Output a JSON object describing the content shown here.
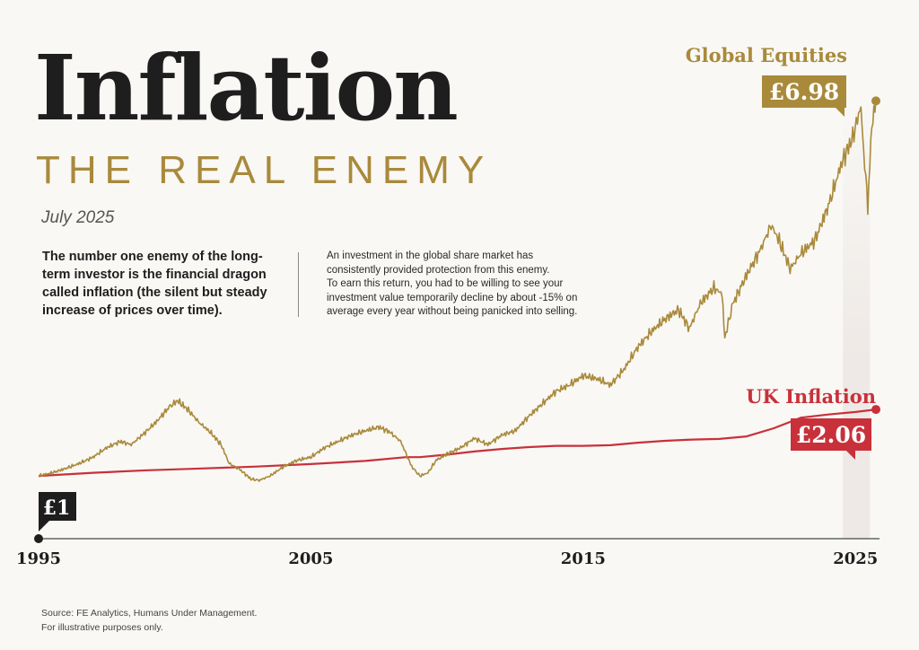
{
  "header": {
    "title": "Inflation",
    "subtitle": "THE REAL ENEMY",
    "date": "July 2025"
  },
  "intro": {
    "lead": "The number one enemy of the long-term investor is the financial dragon called inflation (the silent but steady increase of prices over time).",
    "body_lines": [
      "An investment in the global share market has",
      "consistently provided protection from this enemy.",
      "To earn this return, you had to be willing to see your",
      "investment value temporarily decline by about -15% on",
      "average every year without being panicked into selling."
    ]
  },
  "footer": {
    "source": "Source: FE Analytics, Humans Under Management.",
    "disclaimer": "For illustrative purposes only."
  },
  "colors": {
    "equities": "#a98a3b",
    "inflation": "#c8313a",
    "title": "#1e1e1e",
    "axis": "#1e1e1e"
  },
  "chart_data": {
    "type": "line",
    "title": "",
    "xlabel": "",
    "ylabel": "",
    "x_ticks": [
      "1995",
      "2005",
      "2015",
      "2025"
    ],
    "x_range": [
      1995,
      2025.75
    ],
    "y_range": [
      0,
      7.3
    ],
    "start_label": "£1",
    "series": [
      {
        "name": "Global Equities",
        "value_label": "£6.98",
        "color": "#a98a3b",
        "points": [
          [
            1995.0,
            1.0
          ],
          [
            1995.5,
            1.05
          ],
          [
            1996.0,
            1.12
          ],
          [
            1996.5,
            1.2
          ],
          [
            1997.0,
            1.3
          ],
          [
            1997.5,
            1.45
          ],
          [
            1998.0,
            1.55
          ],
          [
            1998.4,
            1.5
          ],
          [
            1998.8,
            1.65
          ],
          [
            1999.3,
            1.85
          ],
          [
            1999.8,
            2.1
          ],
          [
            2000.1,
            2.2
          ],
          [
            2000.5,
            2.05
          ],
          [
            2000.9,
            1.85
          ],
          [
            2001.3,
            1.7
          ],
          [
            2001.7,
            1.5
          ],
          [
            2002.0,
            1.2
          ],
          [
            2002.4,
            1.1
          ],
          [
            2002.8,
            0.95
          ],
          [
            2003.1,
            0.93
          ],
          [
            2003.5,
            1.0
          ],
          [
            2004.0,
            1.15
          ],
          [
            2004.5,
            1.25
          ],
          [
            2005.0,
            1.3
          ],
          [
            2005.5,
            1.45
          ],
          [
            2006.0,
            1.55
          ],
          [
            2006.5,
            1.65
          ],
          [
            2007.0,
            1.72
          ],
          [
            2007.5,
            1.78
          ],
          [
            2007.9,
            1.7
          ],
          [
            2008.3,
            1.55
          ],
          [
            2008.7,
            1.15
          ],
          [
            2009.0,
            1.0
          ],
          [
            2009.3,
            1.05
          ],
          [
            2009.6,
            1.25
          ],
          [
            2010.0,
            1.35
          ],
          [
            2010.5,
            1.45
          ],
          [
            2011.0,
            1.6
          ],
          [
            2011.5,
            1.5
          ],
          [
            2012.0,
            1.65
          ],
          [
            2012.5,
            1.72
          ],
          [
            2013.0,
            1.95
          ],
          [
            2013.5,
            2.15
          ],
          [
            2014.0,
            2.35
          ],
          [
            2014.5,
            2.45
          ],
          [
            2015.0,
            2.6
          ],
          [
            2015.5,
            2.55
          ],
          [
            2016.0,
            2.45
          ],
          [
            2016.5,
            2.7
          ],
          [
            2017.0,
            3.05
          ],
          [
            2017.5,
            3.3
          ],
          [
            2018.0,
            3.5
          ],
          [
            2018.5,
            3.65
          ],
          [
            2018.9,
            3.35
          ],
          [
            2019.3,
            3.75
          ],
          [
            2019.8,
            4.0
          ],
          [
            2020.1,
            3.9
          ],
          [
            2020.2,
            3.2
          ],
          [
            2020.5,
            3.75
          ],
          [
            2021.0,
            4.2
          ],
          [
            2021.5,
            4.6
          ],
          [
            2021.9,
            5.0
          ],
          [
            2022.2,
            4.75
          ],
          [
            2022.6,
            4.3
          ],
          [
            2023.0,
            4.55
          ],
          [
            2023.5,
            4.75
          ],
          [
            2024.0,
            5.3
          ],
          [
            2024.5,
            6.0
          ],
          [
            2024.9,
            6.4
          ],
          [
            2025.2,
            6.9
          ],
          [
            2025.3,
            6.2
          ],
          [
            2025.45,
            5.3
          ],
          [
            2025.6,
            6.6
          ],
          [
            2025.75,
            6.98
          ]
        ]
      },
      {
        "name": "UK Inflation",
        "value_label": "£2.06",
        "color": "#c8313a",
        "points": [
          [
            1995.0,
            1.0
          ],
          [
            1997.0,
            1.05
          ],
          [
            1999.0,
            1.09
          ],
          [
            2001.0,
            1.12
          ],
          [
            2003.0,
            1.15
          ],
          [
            2005.0,
            1.19
          ],
          [
            2007.0,
            1.24
          ],
          [
            2008.5,
            1.3
          ],
          [
            2009.0,
            1.3
          ],
          [
            2010.0,
            1.34
          ],
          [
            2011.0,
            1.39
          ],
          [
            2012.0,
            1.43
          ],
          [
            2013.0,
            1.46
          ],
          [
            2014.0,
            1.48
          ],
          [
            2015.0,
            1.48
          ],
          [
            2016.0,
            1.49
          ],
          [
            2017.0,
            1.53
          ],
          [
            2018.0,
            1.56
          ],
          [
            2019.0,
            1.58
          ],
          [
            2020.0,
            1.59
          ],
          [
            2021.0,
            1.63
          ],
          [
            2022.0,
            1.76
          ],
          [
            2023.0,
            1.93
          ],
          [
            2024.0,
            1.98
          ],
          [
            2025.0,
            2.02
          ],
          [
            2025.75,
            2.06
          ]
        ]
      }
    ]
  }
}
